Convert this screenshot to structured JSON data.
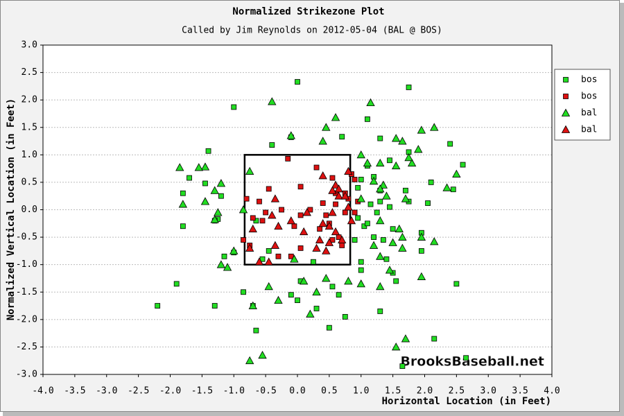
{
  "chart_data": {
    "type": "scatter",
    "title": "Normalized Strikezone Plot",
    "subtitle": "Called by Jim Reynolds on 2012-05-04 (BAL @ BOS)",
    "x_label": "Horizontal Location (in Feet)",
    "y_label": "Normalized Vertical Location (in Feet)",
    "watermark": "BrooksBaseball.net",
    "xlim": [
      -4,
      4
    ],
    "ylim": [
      -3,
      3
    ],
    "xticks": [
      {
        "value": -4,
        "label": "-4.0"
      },
      -3.5,
      {
        "value": -3,
        "label": "-3.0"
      },
      -2.5,
      {
        "value": -2,
        "label": "-2.0"
      },
      -1.5,
      {
        "value": -1,
        "label": "-1.0"
      },
      -0.5,
      {
        "value": 0,
        "label": "0.0"
      },
      0.5,
      {
        "value": 1,
        "label": "1.0"
      },
      1.5,
      {
        "value": 2,
        "label": "2.0"
      },
      2.5,
      {
        "value": 3,
        "label": "3.0"
      },
      3.5,
      {
        "value": 4,
        "label": "4.0"
      }
    ],
    "yticks": [
      {
        "value": 3,
        "label": "3.0"
      },
      2.5,
      {
        "value": 2,
        "label": "2.0"
      },
      1.5,
      {
        "value": 1,
        "label": "1.0"
      },
      0.5,
      {
        "value": 0,
        "label": "0.0"
      },
      -0.5,
      {
        "value": -1,
        "label": "-1.0"
      },
      -1.5,
      {
        "value": -2,
        "label": "-2.0"
      },
      -2.5,
      {
        "value": -3,
        "label": "-3.0"
      }
    ],
    "grid": true,
    "legend": "upper right",
    "zone": {
      "x": [
        -0.83,
        0.83
      ],
      "y": [
        -1,
        1
      ]
    },
    "series": [
      {
        "name": "bos",
        "marker": "square",
        "color": "#22dd22",
        "x": [
          0.0,
          -1.0,
          1.75,
          -1.4,
          -0.4,
          -0.1,
          0.7,
          1.3,
          1.1,
          2.4,
          1.75,
          2.6,
          -1.8,
          -1.7,
          -1.45,
          -1.2,
          -1.25,
          -1.3,
          -1.8,
          -1.15,
          -1.0,
          -0.55,
          0.25,
          -1.9,
          -2.2,
          -1.3,
          -0.85,
          -0.7,
          -0.1,
          0.0,
          0.05,
          0.3,
          0.55,
          0.75,
          0.5,
          0.65,
          -0.65,
          1.0,
          1.0,
          1.5,
          1.55,
          1.4,
          1.2,
          1.35,
          1.5,
          1.25,
          1.15,
          1.3,
          1.45,
          1.75,
          2.05,
          1.7,
          2.1,
          2.45,
          1.3,
          1.2,
          1.0,
          1.1,
          1.45,
          1.05,
          1.1,
          0.95,
          0.9,
          0.95,
          1.3,
          1.65,
          2.15,
          2.65,
          2.5,
          1.95,
          1.95,
          -0.65,
          -0.45
        ],
        "y": [
          2.33,
          1.87,
          2.23,
          1.07,
          1.18,
          1.32,
          1.33,
          1.3,
          1.65,
          1.2,
          1.05,
          0.82,
          0.3,
          0.58,
          0.48,
          0.25,
          -0.17,
          -0.2,
          -0.3,
          -0.85,
          -0.78,
          -0.9,
          -0.95,
          -1.35,
          -1.75,
          -1.75,
          -1.5,
          -1.75,
          -1.55,
          -1.65,
          -1.3,
          -1.8,
          -1.4,
          -1.95,
          -2.15,
          -1.55,
          -2.2,
          -0.95,
          -1.1,
          -1.15,
          -1.3,
          -0.9,
          -0.5,
          -0.55,
          -0.35,
          -0.05,
          0.1,
          0.15,
          0.05,
          0.15,
          0.12,
          0.35,
          0.5,
          0.37,
          0.35,
          0.6,
          0.55,
          0.8,
          0.9,
          -0.3,
          -0.25,
          -0.15,
          -0.55,
          0.4,
          -1.85,
          -2.85,
          -2.35,
          -2.7,
          -1.35,
          -0.75,
          -0.42,
          -0.2,
          -0.75
        ]
      },
      {
        "name": "bos",
        "marker": "square",
        "color": "#dd1111",
        "x": [
          -0.15,
          0.3,
          0.55,
          0.05,
          -0.45,
          0.85,
          0.9,
          0.8,
          0.95,
          0.9,
          0.75,
          0.6,
          0.4,
          0.2,
          0.05,
          -0.05,
          -0.25,
          -0.5,
          -0.55,
          -0.7,
          -0.75,
          -0.85,
          -0.3,
          -0.1,
          0.05,
          0.35,
          0.5,
          0.55,
          0.65,
          0.6,
          0.75,
          -0.8,
          -0.6,
          0.45,
          0.7
        ],
        "y": [
          0.93,
          0.77,
          0.58,
          0.42,
          0.38,
          0.65,
          0.55,
          0.2,
          0.15,
          -0.05,
          -0.05,
          0.1,
          0.12,
          0.0,
          -0.1,
          -0.3,
          0.0,
          -0.05,
          -0.2,
          -0.15,
          -0.65,
          -0.55,
          -0.85,
          -0.85,
          -0.7,
          -0.35,
          -0.25,
          -0.55,
          -0.5,
          0.3,
          0.3,
          0.2,
          0.15,
          -0.1,
          -0.65
        ]
      },
      {
        "name": "bal",
        "marker": "triangle",
        "color": "#22dd22",
        "x": [
          -0.4,
          1.15,
          0.6,
          0.45,
          -0.1,
          1.55,
          1.95,
          2.15,
          0.4,
          1.65,
          -1.45,
          -1.55,
          -1.85,
          -0.75,
          1.0,
          1.1,
          1.3,
          1.55,
          1.8,
          1.9,
          1.75,
          2.35,
          2.5,
          1.35,
          1.2,
          1.3,
          1.0,
          1.3,
          1.4,
          1.6,
          1.65,
          1.65,
          1.5,
          1.2,
          1.3,
          1.95,
          2.15,
          1.95,
          1.3,
          1.45,
          1.0,
          0.8,
          0.45,
          0.3,
          0.1,
          0.2,
          -0.3,
          -0.45,
          -0.7,
          -0.55,
          -0.75,
          1.55,
          1.7,
          -0.05,
          -1.2,
          -1.1,
          -1.8,
          -1.45,
          -1.3,
          -1.2,
          -1.25,
          -1.3,
          -1.0,
          -0.85,
          1.7
        ],
        "y": [
          1.97,
          1.95,
          1.68,
          1.5,
          1.35,
          1.3,
          1.45,
          1.5,
          1.25,
          1.25,
          0.78,
          0.77,
          0.77,
          0.7,
          1.0,
          0.85,
          0.85,
          0.8,
          0.85,
          1.1,
          0.95,
          0.4,
          0.65,
          0.45,
          0.52,
          0.38,
          0.2,
          -0.2,
          0.25,
          -0.35,
          -0.5,
          -0.7,
          -0.6,
          -0.65,
          -0.85,
          -0.5,
          -0.58,
          -1.22,
          -1.4,
          -1.1,
          -1.35,
          -1.3,
          -1.25,
          -1.5,
          -1.3,
          -1.9,
          -1.65,
          -1.4,
          -1.75,
          -2.65,
          -2.75,
          -2.5,
          -2.35,
          -0.9,
          -1.0,
          -1.05,
          0.1,
          0.15,
          0.35,
          0.48,
          -0.05,
          -0.18,
          -0.75,
          0.0,
          0.2
        ]
      },
      {
        "name": "bal",
        "marker": "triangle",
        "color": "#dd1111",
        "x": [
          0.4,
          0.6,
          0.55,
          0.65,
          0.75,
          0.8,
          0.55,
          0.5,
          0.6,
          0.4,
          0.7,
          0.5,
          0.45,
          0.35,
          0.3,
          0.1,
          -0.1,
          0.15,
          -0.4,
          -0.3,
          -0.7,
          -0.75,
          -0.35,
          -0.35,
          -0.45,
          -0.6,
          0.8,
          0.65,
          0.85
        ],
        "y": [
          0.62,
          0.45,
          0.35,
          0.25,
          0.25,
          0.05,
          -0.05,
          -0.3,
          -0.4,
          -0.25,
          -0.55,
          -0.6,
          -0.75,
          -0.55,
          -0.7,
          -0.4,
          -0.2,
          -0.05,
          -0.1,
          -0.3,
          -0.35,
          -0.7,
          -0.65,
          0.2,
          -0.95,
          -0.95,
          0.7,
          0.38,
          -0.2
        ]
      }
    ]
  }
}
